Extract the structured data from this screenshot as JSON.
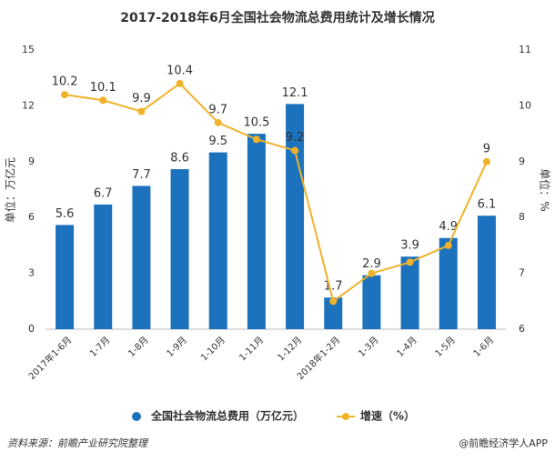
{
  "chart_data": {
    "type": "bar-line",
    "title": "2017-2018年6月全国社会物流总费用统计及增长情况",
    "ylabel": "单位：万亿元",
    "y2label": "单位：%",
    "categories": [
      "2017年1-6月",
      "1-7月",
      "1-8月",
      "1-9月",
      "1-10月",
      "1-11月",
      "1-12月",
      "2018年1-2月",
      "1-3月",
      "1-4月",
      "1-5月",
      "1-6月"
    ],
    "series": [
      {
        "name": "全国社会物流总费用（万亿元）",
        "type": "bar",
        "color": "#1c72bd",
        "values": [
          5.6,
          6.7,
          7.7,
          8.6,
          9.5,
          10.5,
          12.1,
          1.7,
          2.9,
          3.9,
          4.9,
          6.1
        ]
      },
      {
        "name": "增速（%）",
        "type": "line",
        "axis": "y2",
        "color": "#f0b22a",
        "values": [
          10.2,
          10.1,
          9.9,
          10.4,
          9.7,
          9.4,
          9.2,
          6.5,
          7.0,
          7.2,
          7.5,
          9
        ],
        "value_labels": [
          "10.2",
          "10.1",
          "9.9",
          "10.4",
          "9.7",
          null,
          "9.2",
          null,
          null,
          null,
          null,
          "9"
        ]
      }
    ],
    "ylim": [
      0,
      15
    ],
    "yticks": [
      0,
      3,
      6,
      9,
      12,
      15
    ],
    "y2lim": [
      6,
      11
    ],
    "y2ticks": [
      6,
      7,
      8,
      9,
      10,
      11
    ],
    "source": "资料来源：前瞻产业研究院整理",
    "credit": "@前瞻经济学人APP"
  }
}
